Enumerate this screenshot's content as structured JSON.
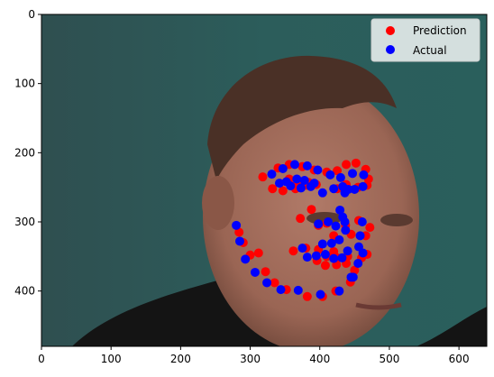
{
  "chart_data": {
    "type": "scatter",
    "title": "",
    "xlabel": "",
    "ylabel": "",
    "xlim": [
      0,
      640
    ],
    "ylim": [
      480,
      0
    ],
    "x_ticks": [
      0,
      100,
      200,
      300,
      400,
      500,
      600
    ],
    "y_ticks": [
      0,
      100,
      200,
      300,
      400
    ],
    "background": "photo of a man's face (webcam image) behind the points",
    "legend": {
      "location": "top-right"
    },
    "series": [
      {
        "name": "Prediction",
        "color": "#ff0000",
        "points": [
          [
            318,
            235
          ],
          [
            332,
            252
          ],
          [
            347,
            255
          ],
          [
            365,
            252
          ],
          [
            381,
            247
          ],
          [
            340,
            222
          ],
          [
            356,
            217
          ],
          [
            375,
            220
          ],
          [
            392,
            225
          ],
          [
            410,
            228
          ],
          [
            356,
            238
          ],
          [
            368,
            243
          ],
          [
            384,
            243
          ],
          [
            395,
            246
          ],
          [
            425,
            252
          ],
          [
            438,
            246
          ],
          [
            455,
            250
          ],
          [
            468,
            247
          ],
          [
            425,
            226
          ],
          [
            438,
            217
          ],
          [
            452,
            215
          ],
          [
            466,
            224
          ],
          [
            470,
            238
          ],
          [
            372,
            295
          ],
          [
            388,
            282
          ],
          [
            398,
            305
          ],
          [
            410,
            302
          ],
          [
            420,
            320
          ],
          [
            437,
            305
          ],
          [
            445,
            318
          ],
          [
            456,
            298
          ],
          [
            466,
            320
          ],
          [
            472,
            308
          ],
          [
            362,
            342
          ],
          [
            380,
            338
          ],
          [
            398,
            340
          ],
          [
            420,
            343
          ],
          [
            410,
            350
          ],
          [
            425,
            352
          ],
          [
            440,
            350
          ],
          [
            396,
            356
          ],
          [
            408,
            363
          ],
          [
            424,
            362
          ],
          [
            438,
            360
          ],
          [
            284,
            315
          ],
          [
            290,
            330
          ],
          [
            300,
            348
          ],
          [
            312,
            345
          ],
          [
            322,
            372
          ],
          [
            335,
            388
          ],
          [
            352,
            398
          ],
          [
            382,
            408
          ],
          [
            404,
            408
          ],
          [
            423,
            400
          ],
          [
            444,
            387
          ],
          [
            450,
            370
          ],
          [
            460,
            352
          ],
          [
            468,
            347
          ]
        ]
      },
      {
        "name": "Actual",
        "color": "#0000ff",
        "points": [
          [
            331,
            231
          ],
          [
            347,
            223
          ],
          [
            364,
            217
          ],
          [
            382,
            219
          ],
          [
            397,
            225
          ],
          [
            342,
            244
          ],
          [
            352,
            242
          ],
          [
            367,
            238
          ],
          [
            378,
            240
          ],
          [
            392,
            244
          ],
          [
            358,
            248
          ],
          [
            373,
            251
          ],
          [
            387,
            249
          ],
          [
            415,
            232
          ],
          [
            430,
            236
          ],
          [
            447,
            230
          ],
          [
            463,
            232
          ],
          [
            420,
            252
          ],
          [
            433,
            249
          ],
          [
            450,
            253
          ],
          [
            462,
            249
          ],
          [
            436,
            258
          ],
          [
            404,
            258
          ],
          [
            429,
            283
          ],
          [
            433,
            293
          ],
          [
            436,
            300
          ],
          [
            398,
            303
          ],
          [
            412,
            300
          ],
          [
            423,
            306
          ],
          [
            437,
            312
          ],
          [
            461,
            300
          ],
          [
            458,
            320
          ],
          [
            456,
            336
          ],
          [
            375,
            338
          ],
          [
            404,
            332
          ],
          [
            417,
            331
          ],
          [
            428,
            326
          ],
          [
            408,
            347
          ],
          [
            420,
            353
          ],
          [
            432,
            352
          ],
          [
            382,
            351
          ],
          [
            395,
            349
          ],
          [
            440,
            342
          ],
          [
            280,
            305
          ],
          [
            285,
            328
          ],
          [
            293,
            354
          ],
          [
            307,
            373
          ],
          [
            324,
            388
          ],
          [
            344,
            398
          ],
          [
            369,
            399
          ],
          [
            401,
            405
          ],
          [
            428,
            400
          ],
          [
            445,
            380
          ],
          [
            455,
            360
          ],
          [
            462,
            345
          ],
          [
            448,
            380
          ],
          [
            441,
            253
          ]
        ]
      }
    ]
  }
}
